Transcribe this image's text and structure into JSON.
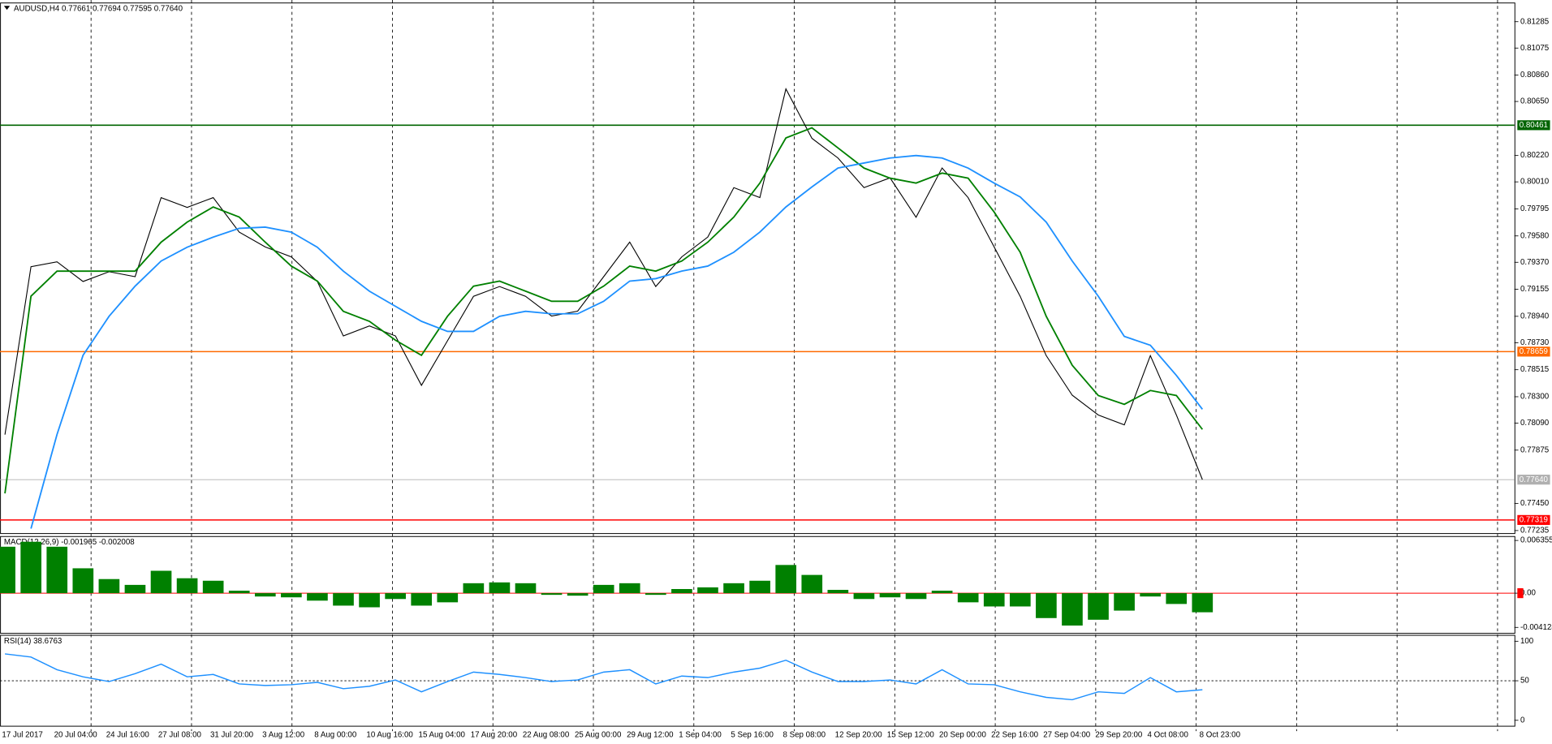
{
  "chart_data": [
    {
      "type": "line",
      "title": "AUDUSD,H4  0.77661 0.77694 0.77595 0.77640",
      "categories": [
        "17 Jul 2017",
        null,
        "20 Jul 04:00",
        null,
        "24 Jul 16:00",
        null,
        "27 Jul 08:00",
        null,
        "31 Jul 20:00",
        null,
        "3 Aug 12:00",
        null,
        "8 Aug 00:00",
        null,
        "10 Aug 16:00",
        null,
        "15 Aug 04:00",
        null,
        "17 Aug 20:00",
        null,
        "22 Aug 08:00",
        null,
        "25 Aug 00:00",
        null,
        "29 Aug 12:00",
        null,
        "1 Sep 04:00",
        null,
        "5 Sep 16:00",
        null,
        "8 Sep 08:00",
        null,
        "12 Sep 20:00",
        null,
        "15 Sep 12:00",
        null,
        "20 Sep 00:00",
        null,
        "22 Sep 16:00",
        null,
        "27 Sep 04:00",
        null,
        "29 Sep 20:00",
        null,
        "4 Oct 08:00",
        null,
        "8 Oct 23:00"
      ],
      "series": [
        {
          "color": "#000000",
          "values": [
            0.77998,
            0.79335,
            0.79374,
            0.79217,
            0.79295,
            0.79256,
            0.79885,
            0.79807,
            0.79885,
            0.7961,
            0.79492,
            0.79413,
            0.79217,
            0.78784,
            0.78863,
            0.78784,
            0.78391,
            0.78745,
            0.79099,
            0.79177,
            0.79099,
            0.78942,
            0.78981,
            0.79256,
            0.79531,
            0.79177,
            0.79413,
            0.79571,
            0.79964,
            0.79885,
            0.8075,
            0.80357,
            0.802,
            0.79964,
            0.80042,
            0.79728,
            0.80121,
            0.79885,
            0.79492,
            0.79099,
            0.78627,
            0.78312,
            0.78155,
            0.78076,
            0.78627,
            0.78155,
            0.7764
          ]
        },
        {
          "color": "#008000",
          "values": [
            0.7753,
            0.791,
            0.793,
            0.793,
            0.793,
            0.793,
            0.7953,
            0.7969,
            0.7981,
            0.7973,
            0.7953,
            0.7934,
            0.7922,
            0.7898,
            0.789,
            0.7875,
            0.7863,
            0.7894,
            0.7918,
            0.7922,
            0.7914,
            0.7906,
            0.7906,
            0.7918,
            0.7934,
            0.793,
            0.7938,
            0.7953,
            0.7973,
            0.8,
            0.8036,
            0.8044,
            0.8028,
            0.8012,
            0.8004,
            0.8,
            0.8008,
            0.8004,
            0.7977,
            0.7945,
            0.7894,
            0.7855,
            0.7831,
            0.7824,
            0.7835,
            0.7831,
            0.7804
          ]
        },
        {
          "color": "#1e90ff",
          "values": [
            null,
            0.7725,
            0.78,
            0.7863,
            0.7894,
            0.7918,
            0.7938,
            0.7949,
            0.7957,
            0.7964,
            0.7965,
            0.7961,
            0.7949,
            0.793,
            0.7914,
            0.7902,
            0.789,
            0.7882,
            0.7882,
            0.7894,
            0.7898,
            0.7896,
            0.7896,
            0.7906,
            0.7922,
            0.7924,
            0.793,
            0.7934,
            0.7945,
            0.7961,
            0.7981,
            0.7997,
            0.8012,
            0.8016,
            0.802,
            0.8022,
            0.802,
            0.8012,
            0.8,
            0.7989,
            0.7969,
            0.7938,
            0.791,
            0.7878,
            0.7871,
            0.7847,
            0.782
          ]
        }
      ],
      "ylim": [
        0.77211,
        0.81434
      ],
      "yticks": [
        {
          "value": 0.81285,
          "label": "0.81285"
        },
        {
          "value": 0.81075,
          "label": "0.81075"
        },
        {
          "value": 0.8086,
          "label": "0.80860"
        },
        {
          "value": 0.8065,
          "label": "0.80650"
        },
        {
          "value": 0.8022,
          "label": "0.80220"
        },
        {
          "value": 0.8001,
          "label": "0.80010"
        },
        {
          "value": 0.79795,
          "label": "0.79795"
        },
        {
          "value": 0.7958,
          "label": "0.79580"
        },
        {
          "value": 0.7937,
          "label": "0.79370"
        },
        {
          "value": 0.79155,
          "label": "0.79155"
        },
        {
          "value": 0.7894,
          "label": "0.78940"
        },
        {
          "value": 0.7873,
          "label": "0.78730"
        },
        {
          "value": 0.78515,
          "label": "0.78515"
        },
        {
          "value": 0.783,
          "label": "0.78300"
        },
        {
          "value": 0.7809,
          "label": "0.78090"
        },
        {
          "value": 0.77875,
          "label": "0.77875"
        },
        {
          "value": 0.7745,
          "label": "0.77450"
        },
        {
          "value": 0.77235,
          "label": "0.77235"
        }
      ],
      "levels": [
        {
          "value": 0.80461,
          "color": "#006400"
        },
        {
          "value": 0.78659,
          "color": "#ff6a00"
        },
        {
          "value": 0.77319,
          "color": "#ff0000"
        },
        {
          "value": 0.7764,
          "label": "0.77640",
          "color": "#b0b0b0"
        }
      ]
    },
    {
      "type": "bar",
      "title": "MACD(12,26,9) -0.001965 -0.002008",
      "color": "#008000",
      "values": [
        0.0056,
        0.0062,
        0.0056,
        0.003,
        0.0017,
        0.001,
        0.0027,
        0.0018,
        0.0015,
        0.0003,
        -0.0004,
        -0.0005,
        -0.0009,
        -0.0015,
        -0.0017,
        -0.0007,
        -0.0015,
        -0.0011,
        0.0012,
        0.0013,
        0.0012,
        -0.0002,
        -0.0003,
        0.001,
        0.0012,
        -0.0002,
        0.0005,
        0.0007,
        0.0012,
        0.0015,
        0.0034,
        0.0022,
        0.0004,
        -0.0007,
        -0.0005,
        -0.0007,
        0.0003,
        -0.0011,
        -0.0016,
        -0.0016,
        -0.003,
        -0.0039,
        -0.0032,
        -0.0021,
        -0.0004,
        -0.0013,
        -0.0023
      ],
      "ylim": [
        -0.00484,
        0.00683
      ],
      "yticks": [
        0.006355,
        {
          "value": 0,
          "label": "0.00"
        },
        -0.004124
      ],
      "levels": [
        {
          "value": 0,
          "color": "#ff0000"
        }
      ]
    },
    {
      "type": "line",
      "title": "RSI(14) 38.6763",
      "color": "#1e90ff",
      "values": [
        84,
        80,
        64,
        55,
        49,
        59,
        71,
        55,
        58,
        46,
        44,
        45,
        48,
        40,
        43,
        51,
        36,
        49,
        61,
        58,
        54,
        49,
        51,
        61,
        64,
        46,
        56,
        54,
        61,
        66,
        76,
        61,
        49,
        49,
        51,
        46,
        64,
        46,
        45,
        36,
        29,
        26,
        36,
        34,
        54,
        36,
        38.6763
      ],
      "ylim": [
        -7.5,
        107.5
      ],
      "yticks": [
        100,
        50,
        0
      ],
      "levels": [
        {
          "value": 50,
          "color": "#000000"
        }
      ]
    }
  ]
}
